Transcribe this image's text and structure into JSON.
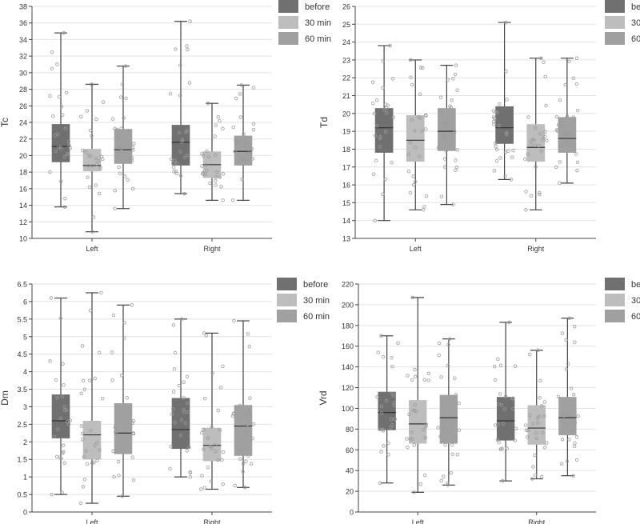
{
  "colors": {
    "before": "#707070",
    "min30": "#bdbdbd",
    "min60": "#a0a0a0",
    "grid": "#e2e2e2",
    "axis": "#444444",
    "points": "#9a9a9a"
  },
  "chart_data": [
    {
      "type": "boxplot",
      "ylabel": "Tc",
      "categories": [
        "Left",
        "Right"
      ],
      "ylim": [
        10,
        38
      ],
      "yticks": [
        10,
        12,
        14,
        16,
        18,
        20,
        22,
        24,
        26,
        28,
        30,
        32,
        34,
        36,
        38
      ],
      "grid": true,
      "legend": "top-right",
      "series": [
        {
          "name": "before",
          "boxes": [
            {
              "min": 13.8,
              "q1": 19.2,
              "median": 21.1,
              "q3": 23.8,
              "max": 34.8
            },
            {
              "min": 15.4,
              "q1": 18.8,
              "median": 21.6,
              "q3": 23.7,
              "max": 36.2
            }
          ]
        },
        {
          "name": "30 min",
          "boxes": [
            {
              "min": 10.8,
              "q1": 18.1,
              "median": 18.8,
              "q3": 20.8,
              "max": 28.6
            },
            {
              "min": 14.6,
              "q1": 17.3,
              "median": 18.9,
              "q3": 20.5,
              "max": 26.3
            }
          ]
        },
        {
          "name": "60 min",
          "boxes": [
            {
              "min": 13.6,
              "q1": 19.0,
              "median": 20.7,
              "q3": 23.2,
              "max": 30.8
            },
            {
              "min": 14.6,
              "q1": 18.8,
              "median": 20.5,
              "q3": 22.4,
              "max": 28.5
            }
          ]
        }
      ]
    },
    {
      "type": "boxplot",
      "ylabel": "Td",
      "categories": [
        "Left",
        "Right"
      ],
      "ylim": [
        13,
        26
      ],
      "yticks": [
        13,
        14,
        15,
        16,
        17,
        18,
        19,
        20,
        21,
        22,
        23,
        24,
        25,
        26
      ],
      "grid": true,
      "legend": "top-right",
      "series": [
        {
          "name": "before",
          "boxes": [
            {
              "min": 14.0,
              "q1": 17.8,
              "median": 19.2,
              "q3": 20.3,
              "max": 23.8
            },
            {
              "min": 16.3,
              "q1": 18.3,
              "median": 19.2,
              "q3": 20.4,
              "max": 25.1
            }
          ]
        },
        {
          "name": "30 min",
          "boxes": [
            {
              "min": 14.6,
              "q1": 17.3,
              "median": 18.5,
              "q3": 19.9,
              "max": 23.0
            },
            {
              "min": 14.6,
              "q1": 17.3,
              "median": 18.1,
              "q3": 19.4,
              "max": 23.1
            }
          ]
        },
        {
          "name": "60 min",
          "boxes": [
            {
              "min": 14.9,
              "q1": 17.9,
              "median": 19.0,
              "q3": 20.3,
              "max": 22.7
            },
            {
              "min": 16.1,
              "q1": 17.8,
              "median": 18.6,
              "q3": 19.8,
              "max": 23.1
            }
          ]
        }
      ]
    },
    {
      "type": "boxplot",
      "ylabel": "Dm",
      "categories": [
        "Left",
        "Right"
      ],
      "ylim": [
        0,
        6.5
      ],
      "yticks": [
        0,
        0.5,
        1,
        1.5,
        2,
        2.5,
        3,
        3.5,
        4,
        4.5,
        5,
        5.5,
        6,
        6.5
      ],
      "grid": true,
      "legend": "top-right",
      "series": [
        {
          "name": "before",
          "boxes": [
            {
              "min": 0.5,
              "q1": 2.1,
              "median": 2.6,
              "q3": 3.35,
              "max": 6.1
            },
            {
              "min": 1.0,
              "q1": 1.8,
              "median": 2.35,
              "q3": 3.25,
              "max": 5.5
            }
          ]
        },
        {
          "name": "30 min",
          "boxes": [
            {
              "min": 0.25,
              "q1": 1.5,
              "median": 2.2,
              "q3": 2.6,
              "max": 6.25
            },
            {
              "min": 0.65,
              "q1": 1.45,
              "median": 1.9,
              "q3": 2.4,
              "max": 5.1
            }
          ]
        },
        {
          "name": "60 min",
          "boxes": [
            {
              "min": 0.45,
              "q1": 1.65,
              "median": 2.25,
              "q3": 3.1,
              "max": 5.9
            },
            {
              "min": 0.7,
              "q1": 1.6,
              "median": 2.45,
              "q3": 3.05,
              "max": 5.45
            }
          ]
        }
      ]
    },
    {
      "type": "boxplot",
      "ylabel": "Vrd",
      "categories": [
        "Left",
        "Right"
      ],
      "ylim": [
        0,
        220
      ],
      "yticks": [
        0,
        20,
        40,
        60,
        80,
        100,
        120,
        140,
        160,
        180,
        200,
        220
      ],
      "grid": true,
      "legend": "top-right",
      "series": [
        {
          "name": "before",
          "boxes": [
            {
              "min": 28,
              "q1": 79,
              "median": 96,
              "q3": 116,
              "max": 170
            },
            {
              "min": 30,
              "q1": 69,
              "median": 88,
              "q3": 111,
              "max": 183
            }
          ]
        },
        {
          "name": "30 min",
          "boxes": [
            {
              "min": 19,
              "q1": 66,
              "median": 85,
              "q3": 108,
              "max": 207
            },
            {
              "min": 32,
              "q1": 65,
              "median": 81,
              "q3": 103,
              "max": 156
            }
          ]
        },
        {
          "name": "60 min",
          "boxes": [
            {
              "min": 26,
              "q1": 66,
              "median": 91,
              "q3": 113,
              "max": 167
            },
            {
              "min": 35,
              "q1": 74,
              "median": 91,
              "q3": 111,
              "max": 187
            }
          ]
        }
      ]
    }
  ]
}
